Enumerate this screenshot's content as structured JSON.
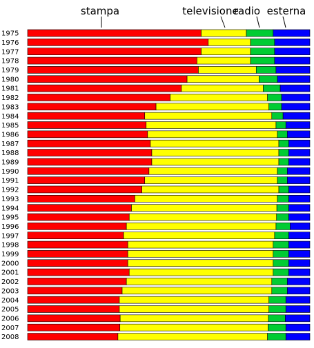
{
  "chart_data": {
    "type": "bar",
    "orientation": "horizontal",
    "stacked": true,
    "normalized": true,
    "categories": [
      "1975",
      "1976",
      "1977",
      "1978",
      "1979",
      "1980",
      "1981",
      "1982",
      "1983",
      "1984",
      "1985",
      "1986",
      "1987",
      "1988",
      "1989",
      "1990",
      "1991",
      "1992",
      "1993",
      "1994",
      "1995",
      "1996",
      "1997",
      "1998",
      "1999",
      "2000",
      "2001",
      "2002",
      "2003",
      "2004",
      "2005",
      "2006",
      "2007",
      "2008"
    ],
    "series": [
      {
        "name": "stampa",
        "color": "#ff0000",
        "values": [
          61.5,
          64.0,
          61.5,
          60.0,
          60.5,
          56.5,
          54.5,
          50.5,
          45.5,
          41.5,
          42.0,
          42.5,
          43.5,
          44.0,
          44.0,
          43.0,
          41.5,
          40.5,
          38.0,
          36.8,
          36.0,
          35.0,
          34.0,
          35.5,
          35.5,
          35.5,
          36.0,
          35.0,
          33.5,
          32.5,
          32.5,
          32.8,
          32.7,
          32.0
        ]
      },
      {
        "name": "televisione",
        "color": "#ffff00",
        "values": [
          16.0,
          15.0,
          17.5,
          19.0,
          20.5,
          25.5,
          29.0,
          34.5,
          40.0,
          45.0,
          46.0,
          46.0,
          45.5,
          45.0,
          45.0,
          45.5,
          47.0,
          48.5,
          50.5,
          51.5,
          52.2,
          53.0,
          53.5,
          51.5,
          51.5,
          51.5,
          51.0,
          51.5,
          53.0,
          53.0,
          53.0,
          52.5,
          52.5,
          53.0
        ]
      },
      {
        "name": "radio",
        "color": "#00cc33",
        "values": [
          9.5,
          8.5,
          8.5,
          8.5,
          7.0,
          6.5,
          6.0,
          5.0,
          4.5,
          4.0,
          3.5,
          3.5,
          3.5,
          3.5,
          3.5,
          3.5,
          3.5,
          3.5,
          4.0,
          4.2,
          4.3,
          5.0,
          5.0,
          5.5,
          5.5,
          5.5,
          5.5,
          5.5,
          5.5,
          6.0,
          6.0,
          6.0,
          6.3,
          6.5
        ]
      },
      {
        "name": "esterna",
        "color": "#0000ff",
        "values": [
          13.0,
          12.5,
          12.5,
          12.5,
          12.0,
          11.5,
          10.5,
          10.0,
          10.0,
          9.5,
          8.5,
          8.0,
          7.5,
          7.5,
          7.5,
          8.0,
          8.0,
          7.5,
          7.5,
          7.5,
          7.5,
          7.0,
          7.5,
          7.5,
          7.5,
          7.5,
          7.5,
          8.0,
          8.0,
          8.5,
          8.5,
          8.7,
          8.5,
          8.5
        ]
      }
    ],
    "xlim": [
      0,
      100
    ],
    "title": "",
    "xlabel": "",
    "ylabel": "",
    "legend_placement": "top, labels above bar segments",
    "grid": false
  }
}
